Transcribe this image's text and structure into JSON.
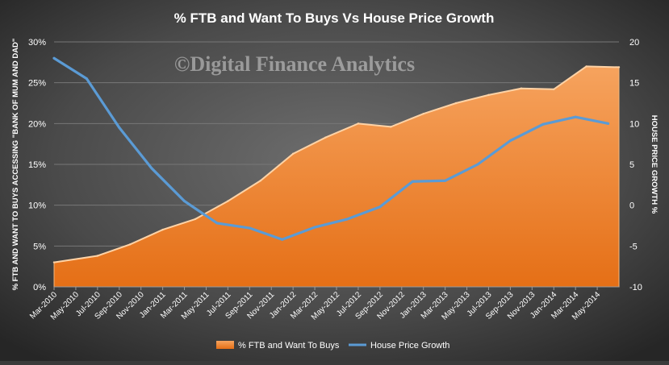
{
  "chart_data": {
    "type": "area",
    "title": "% FTB and Want To Buys Vs House Price Growth",
    "watermark": "©Digital Finance Analytics",
    "ylabel_left": "% FTB AND WANT TO BUYS ACCESSING \"BANK OF MUM AND DAD\"",
    "ylabel_right": "HOUSE PRICE GROWTH %",
    "xlabel": "",
    "categories": [
      "Mar-2010",
      "May-2010",
      "Jul-2010",
      "Sep-2010",
      "Nov-2010",
      "Jan-2011",
      "Mar-2011",
      "May-2011",
      "Jul-2011",
      "Sep-2011",
      "Nov-2011",
      "Jan-2012",
      "Mar-2012",
      "May-2012",
      "Jul-2012",
      "Sep-2012",
      "Nov-2012",
      "Jan-2013",
      "Mar-2013",
      "May-2013",
      "Jul-2013",
      "Sep-2013",
      "Nov-2013",
      "Jan-2014",
      "Mar-2014",
      "May-2014"
    ],
    "left_axis": {
      "min": 0,
      "max": 30,
      "step": 5,
      "tick_labels": [
        "0%",
        "5%",
        "10%",
        "15%",
        "20%",
        "25%",
        "30%"
      ]
    },
    "right_axis": {
      "min": -10,
      "max": 20,
      "step": 5,
      "tick_labels": [
        "-10",
        "-5",
        "0",
        "5",
        "10",
        "15",
        "20"
      ]
    },
    "series": [
      {
        "name": "% FTB and Want To Buys",
        "kind": "area",
        "axis": "left",
        "color": "#f28a3a",
        "points": [
          {
            "x": "Mar-2010",
            "y": 3.0
          },
          {
            "x": "Jul-2010",
            "y": 3.8
          },
          {
            "x": "Oct-2010",
            "y": 5.2
          },
          {
            "x": "Jan-2011",
            "y": 7.0
          },
          {
            "x": "Apr-2011",
            "y": 8.3
          },
          {
            "x": "Jul-2011",
            "y": 10.5
          },
          {
            "x": "Oct-2011",
            "y": 13.0
          },
          {
            "x": "Jan-2012",
            "y": 16.3
          },
          {
            "x": "Apr-2012",
            "y": 18.3
          },
          {
            "x": "Jul-2012",
            "y": 20.0
          },
          {
            "x": "Oct-2012",
            "y": 19.6
          },
          {
            "x": "Jan-2013",
            "y": 21.2
          },
          {
            "x": "Apr-2013",
            "y": 22.5
          },
          {
            "x": "Jul-2013",
            "y": 23.5
          },
          {
            "x": "Oct-2013",
            "y": 24.3
          },
          {
            "x": "Jan-2014",
            "y": 24.2
          },
          {
            "x": "Apr-2014",
            "y": 27.0
          },
          {
            "x": "Jul-2014",
            "y": 26.9
          }
        ]
      },
      {
        "name": "House Price Growth",
        "kind": "line",
        "axis": "right",
        "color": "#5b9bd5",
        "points": [
          {
            "x": "Mar-2010",
            "y": 18.0
          },
          {
            "x": "Jun-2010",
            "y": 15.5
          },
          {
            "x": "Sep-2010",
            "y": 9.5
          },
          {
            "x": "Dec-2010",
            "y": 4.5
          },
          {
            "x": "Mar-2011",
            "y": 0.5
          },
          {
            "x": "Jun-2011",
            "y": -2.2
          },
          {
            "x": "Sep-2011",
            "y": -2.8
          },
          {
            "x": "Dec-2011",
            "y": -4.2
          },
          {
            "x": "Mar-2012",
            "y": -2.7
          },
          {
            "x": "Jun-2012",
            "y": -1.7
          },
          {
            "x": "Sep-2012",
            "y": -0.2
          },
          {
            "x": "Dec-2012",
            "y": 2.9
          },
          {
            "x": "Mar-2013",
            "y": 3.0
          },
          {
            "x": "Jun-2013",
            "y": 5.0
          },
          {
            "x": "Sep-2013",
            "y": 7.9
          },
          {
            "x": "Dec-2013",
            "y": 9.9
          },
          {
            "x": "Mar-2014",
            "y": 10.8
          },
          {
            "x": "Jun-2014",
            "y": 10.0
          }
        ]
      }
    ],
    "legend": {
      "position": "bottom"
    },
    "grid": {
      "horizontal": true,
      "vertical": false
    }
  }
}
